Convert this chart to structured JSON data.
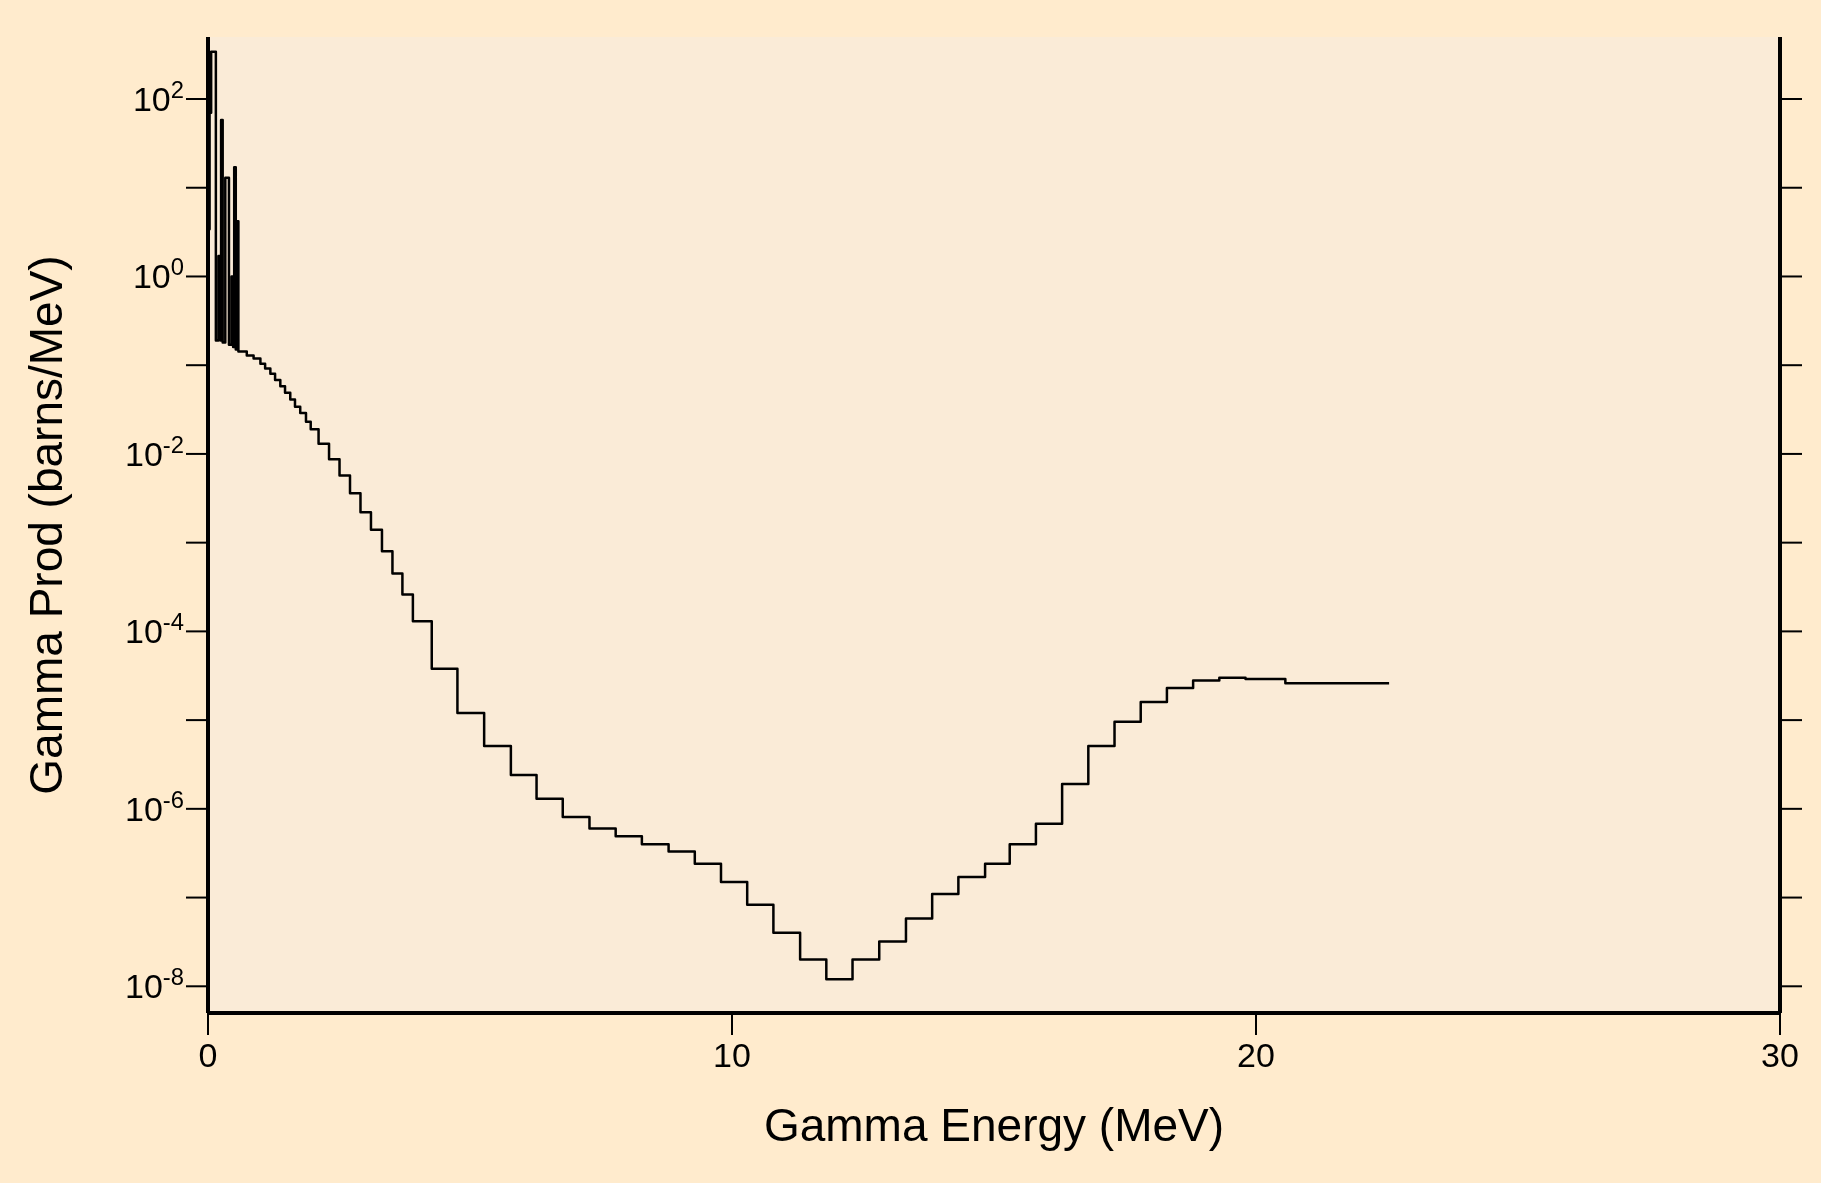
{
  "chart_data": {
    "type": "step",
    "xlabel": "Gamma Energy (MeV)",
    "ylabel": "Gamma Prod (barns/MeV)",
    "log": "y",
    "xlim": [
      0,
      30
    ],
    "xticks": [
      0,
      10,
      20,
      30
    ],
    "ylim": [
      5e-09,
      500
    ],
    "yticks": [
      {
        "value": 100,
        "label": "10$^{2}$"
      },
      {
        "value": 1,
        "label": "10$^{0}$"
      },
      {
        "value": 0.01,
        "label": "10$^{-2}$"
      },
      {
        "value": 0.0001,
        "label": "10$^{-4}$"
      },
      {
        "value": 1e-06,
        "label": "10$^{-6}$"
      },
      {
        "value": 1e-08,
        "label": "10$^{-8}$"
      }
    ],
    "series": [
      {
        "color": "#000000",
        "x": [
          0.0,
          0.03,
          0.06,
          0.15,
          0.2,
          0.24,
          0.25,
          0.28,
          0.33,
          0.4,
          0.45,
          0.48,
          0.5,
          0.53,
          0.55,
          0.58,
          0.74,
          0.87,
          1.0,
          1.09,
          1.19,
          1.28,
          1.38,
          1.47,
          1.57,
          1.66,
          1.76,
          1.87,
          1.96,
          2.11,
          2.31,
          2.51,
          2.71,
          2.91,
          3.11,
          3.32,
          3.52,
          3.71,
          3.91,
          4.27,
          4.76,
          5.27,
          5.78,
          6.27,
          6.77,
          7.28,
          7.78,
          8.28,
          8.79,
          9.29,
          9.79,
          10.29,
          10.79,
          11.3,
          11.8,
          12.3,
          12.81,
          13.32,
          13.82,
          14.32,
          14.83,
          15.3,
          15.8,
          16.3,
          16.8,
          17.3,
          17.8,
          18.3,
          18.8,
          19.3,
          19.8,
          20.56,
          21.55,
          22.54
        ],
        "values": [
          3.4,
          70,
          340,
          0.19,
          1.7,
          0.19,
          58,
          0.18,
          13,
          0.17,
          1.0,
          0.16,
          17,
          0.15,
          4.2,
          0.143,
          0.129,
          0.119,
          0.104,
          0.092,
          0.08,
          0.068,
          0.058,
          0.049,
          0.041,
          0.034,
          0.029,
          0.023,
          0.019,
          0.013,
          0.0087,
          0.0057,
          0.0036,
          0.0022,
          0.0014,
          0.0008,
          0.00045,
          0.00026,
          0.00013,
          3.8e-05,
          1.2e-05,
          5.1e-06,
          2.4e-06,
          1.3e-06,
          8.1e-07,
          6e-07,
          4.9e-07,
          4e-07,
          3.3e-07,
          2.4e-07,
          1.5e-07,
          8.3e-08,
          4e-08,
          2e-08,
          1.2e-08,
          2e-08,
          3.2e-08,
          5.8e-08,
          1.1e-07,
          1.7e-07,
          2.4e-07,
          4e-07,
          6.8e-07,
          1.9e-06,
          5.1e-06,
          9.6e-06,
          1.6e-05,
          2.3e-05,
          2.8e-05,
          3e-05,
          2.9e-05,
          2.6e-05,
          2.6e-05,
          2.6e-05
        ]
      }
    ]
  }
}
